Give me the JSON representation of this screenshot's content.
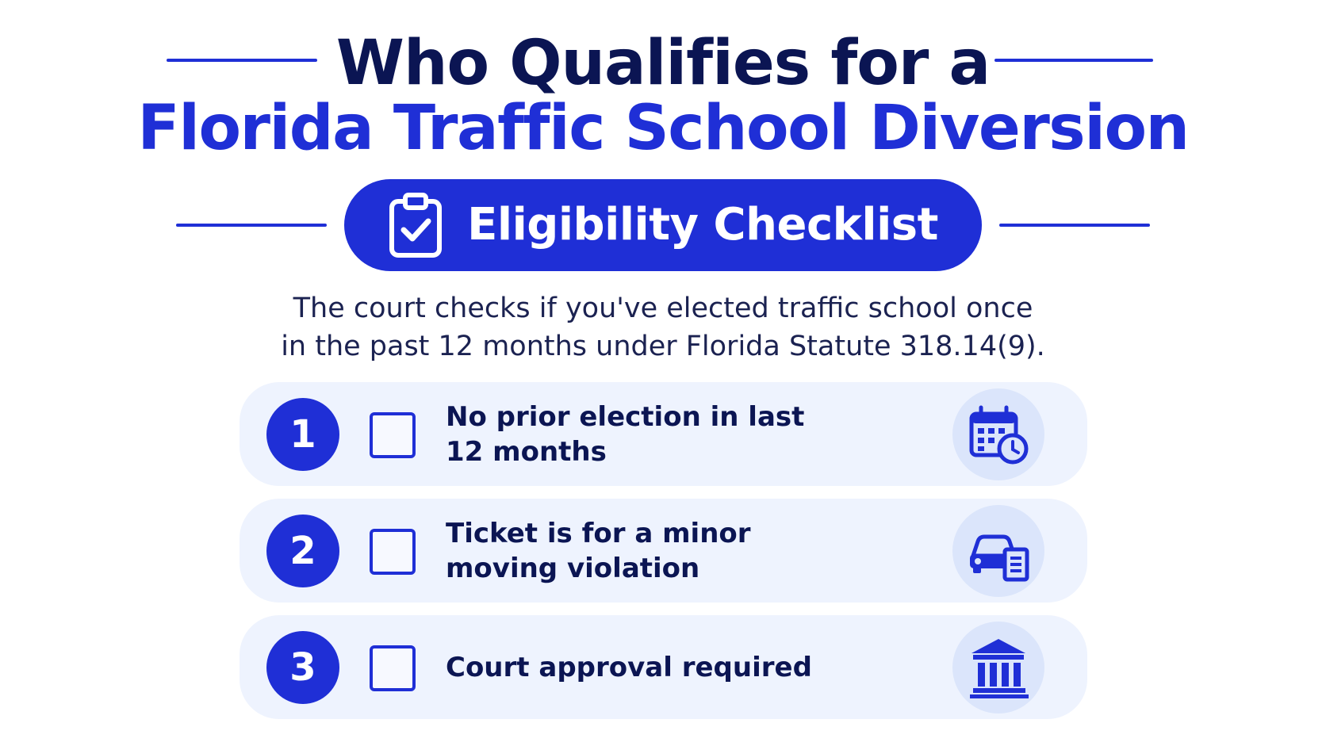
{
  "header": {
    "title_line_1": "Who Qualifies for a",
    "title_line_2": "Florida Traffic School Diversion"
  },
  "badge": {
    "label": "Eligibility Checklist",
    "icon": "clipboard-check-icon"
  },
  "intro": {
    "line_1": "The court checks if you've elected traffic school once",
    "line_2": "in the past 12 months under Florida Statute 318.14(9)."
  },
  "checklist": [
    {
      "number": "1",
      "label_line_1": "No prior election in last",
      "label_line_2": "12 months",
      "checked": false,
      "icon": "calendar-clock-icon"
    },
    {
      "number": "2",
      "label_line_1": "Ticket is for a minor",
      "label_line_2": "moving violation",
      "checked": false,
      "icon": "car-document-icon"
    },
    {
      "number": "3",
      "label_line_1": "Court approval required",
      "label_line_2": "",
      "checked": false,
      "icon": "courthouse-icon"
    }
  ],
  "colors": {
    "accent": "#1f2fd6",
    "title_dark": "#0b1553",
    "row_background": "#eef3fe",
    "icon_badge": "#dbe5fb"
  }
}
